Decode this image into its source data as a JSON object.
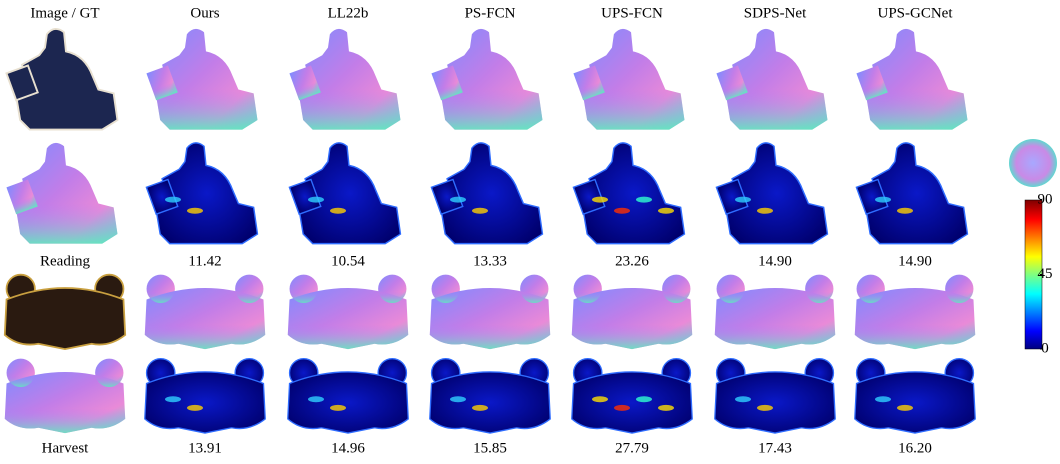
{
  "figure": {
    "headers": [
      "Image / GT",
      "Ours",
      "LL22b",
      "PS-FCN",
      "UPS-FCN",
      "SDPS-Net",
      "UPS-GCNet"
    ],
    "objects": [
      {
        "name": "Reading",
        "errors": [
          11.42,
          10.54,
          13.33,
          23.26,
          {
            "value": 14.9,
            "label": "14.90"
          },
          {
            "value": 14.9,
            "label": "14.90"
          }
        ]
      },
      {
        "name": "Harvest",
        "errors": [
          13.91,
          14.96,
          15.85,
          27.79,
          17.43,
          {
            "value": 16.2,
            "label": "16.20"
          }
        ]
      }
    ],
    "colorbar": {
      "range": [
        0,
        90
      ],
      "ticks": [
        0,
        45,
        90
      ]
    }
  }
}
